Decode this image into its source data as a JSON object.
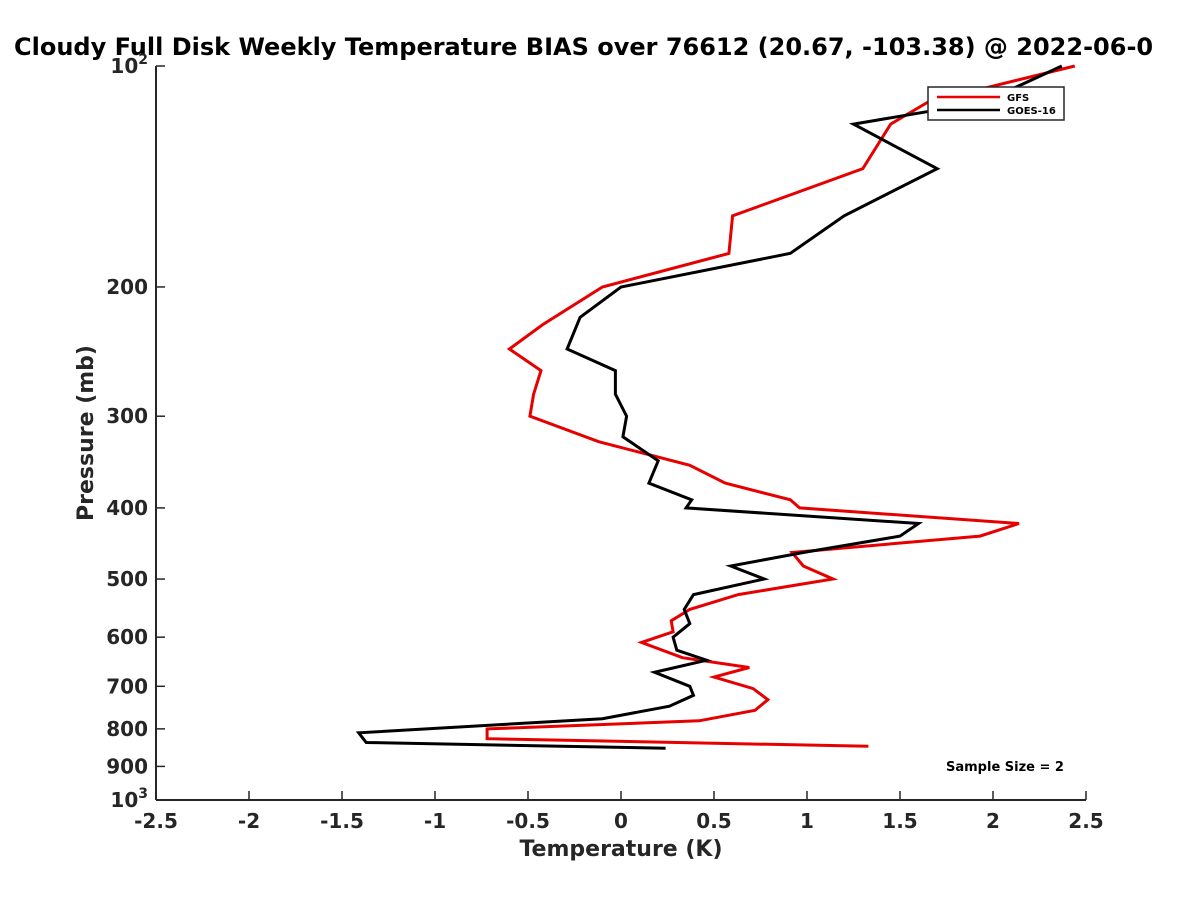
{
  "chart_data": {
    "type": "line",
    "title": "Cloudy Full Disk Weekly Temperature BIAS over 76612 (20.67, -103.38) @ 2022-06-0",
    "xlabel": "Temperature (K)",
    "ylabel": "Pressure (mb)",
    "xlim": [
      -2.5,
      2.5
    ],
    "ylim": [
      100,
      1000
    ],
    "y_scale": "log",
    "y_reversed": true,
    "grid": false,
    "legend_position": "top-right",
    "x_ticks": [
      "-2.5",
      "-2",
      "-1.5",
      "-1",
      "-0.5",
      "0",
      "0.5",
      "1",
      "1.5",
      "2",
      "2.5"
    ],
    "x_tick_values": [
      -2.5,
      -2,
      -1.5,
      -1,
      -0.5,
      0,
      0.5,
      1,
      1.5,
      2,
      2.5
    ],
    "y_ticks": [
      {
        "value": 100,
        "base": "10",
        "exp": "2"
      },
      {
        "value": 200,
        "label": "200"
      },
      {
        "value": 300,
        "label": "300"
      },
      {
        "value": 400,
        "label": "400"
      },
      {
        "value": 500,
        "label": "500"
      },
      {
        "value": 600,
        "label": "600"
      },
      {
        "value": 700,
        "label": "700"
      },
      {
        "value": 800,
        "label": "800"
      },
      {
        "value": 900,
        "label": "900"
      },
      {
        "value": 1000,
        "base": "10",
        "exp": "3"
      }
    ],
    "annotation": "Sample Size = 2",
    "series": [
      {
        "name": "GFS",
        "color": "#e60000",
        "points": [
          [
            2.44,
            100
          ],
          [
            1.65,
            112
          ],
          [
            1.45,
            120
          ],
          [
            1.3,
            138
          ],
          [
            0.6,
            160
          ],
          [
            0.58,
            180
          ],
          [
            -0.1,
            200
          ],
          [
            -0.42,
            225
          ],
          [
            -0.6,
            243
          ],
          [
            -0.43,
            260
          ],
          [
            -0.47,
            280
          ],
          [
            -0.49,
            300
          ],
          [
            -0.12,
            325
          ],
          [
            0.37,
            350
          ],
          [
            0.56,
            370
          ],
          [
            0.91,
            390
          ],
          [
            0.96,
            400
          ],
          [
            2.14,
            420
          ],
          [
            1.93,
            437
          ],
          [
            0.92,
            460
          ],
          [
            0.98,
            480
          ],
          [
            1.14,
            500
          ],
          [
            0.63,
            525
          ],
          [
            0.37,
            550
          ],
          [
            0.27,
            570
          ],
          [
            0.28,
            590
          ],
          [
            0.11,
            610
          ],
          [
            0.33,
            640
          ],
          [
            0.69,
            660
          ],
          [
            0.5,
            680
          ],
          [
            0.71,
            705
          ],
          [
            0.79,
            730
          ],
          [
            0.72,
            755
          ],
          [
            0.42,
            780
          ],
          [
            -0.72,
            800
          ],
          [
            -0.72,
            825
          ],
          [
            1.33,
            845
          ]
        ]
      },
      {
        "name": "GOES-16",
        "color": "#000000",
        "points": [
          [
            2.37,
            100
          ],
          [
            1.95,
            112
          ],
          [
            1.25,
            120
          ],
          [
            1.7,
            138
          ],
          [
            1.2,
            160
          ],
          [
            0.91,
            180
          ],
          [
            0.0,
            200
          ],
          [
            -0.22,
            220
          ],
          [
            -0.29,
            243
          ],
          [
            -0.03,
            260
          ],
          [
            -0.03,
            280
          ],
          [
            0.03,
            300
          ],
          [
            0.01,
            320
          ],
          [
            0.2,
            345
          ],
          [
            0.15,
            370
          ],
          [
            0.38,
            390
          ],
          [
            0.35,
            400
          ],
          [
            1.6,
            420
          ],
          [
            1.5,
            437
          ],
          [
            0.98,
            460
          ],
          [
            0.59,
            480
          ],
          [
            0.77,
            500
          ],
          [
            0.39,
            525
          ],
          [
            0.34,
            550
          ],
          [
            0.37,
            575
          ],
          [
            0.28,
            600
          ],
          [
            0.3,
            625
          ],
          [
            0.46,
            645
          ],
          [
            0.18,
            670
          ],
          [
            0.37,
            700
          ],
          [
            0.39,
            720
          ],
          [
            0.26,
            745
          ],
          [
            -0.1,
            775
          ],
          [
            -1.41,
            810
          ],
          [
            -1.37,
            835
          ],
          [
            0.24,
            850
          ]
        ]
      }
    ]
  }
}
